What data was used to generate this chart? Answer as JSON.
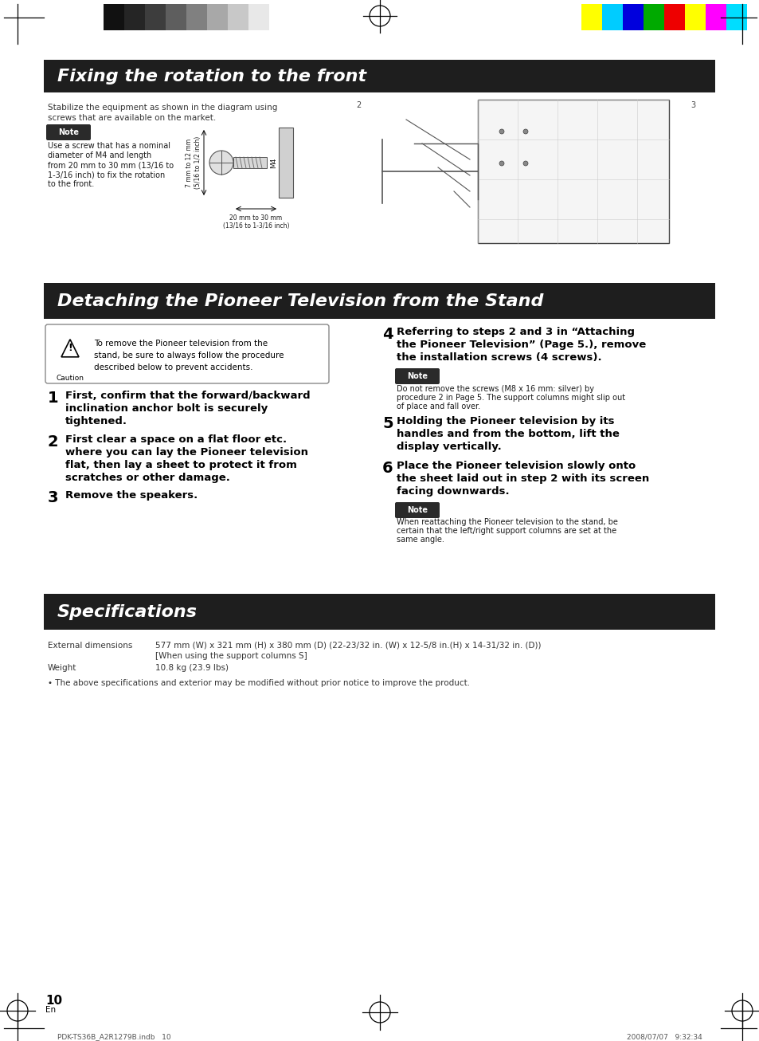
{
  "page_bg": "#ffffff",
  "header_bar_color": "#1e1e1e",
  "header_text_color": "#ffffff",
  "header_font_size": 16,
  "section1_title": "Fixing the rotation to the front",
  "section2_title": "Detaching the Pioneer Television from the Stand",
  "section3_title": "Specifications",
  "note_bg": "#2a2a2a",
  "note_text_color": "#ffffff",
  "note_label": "Note",
  "caution_label": "Caution",
  "body_text_color": "#1a1a1a",
  "small_text_color": "#333333",
  "color_bars_left": [
    "#111111",
    "#252525",
    "#3d3d3d",
    "#5e5e5e",
    "#808080",
    "#a8a8a8",
    "#c8c8c8",
    "#e8e8e8"
  ],
  "color_bars_right": [
    "#ffff00",
    "#00ccff",
    "#0000dd",
    "#00aa00",
    "#ee0000",
    "#ffff00",
    "#ff00ff",
    "#00ddff"
  ],
  "page_number": "10",
  "page_lang": "En",
  "footer_left": "PDK-TS36B_A2R1279B.indb   10",
  "footer_right": "2008/07/07   9:32:34"
}
